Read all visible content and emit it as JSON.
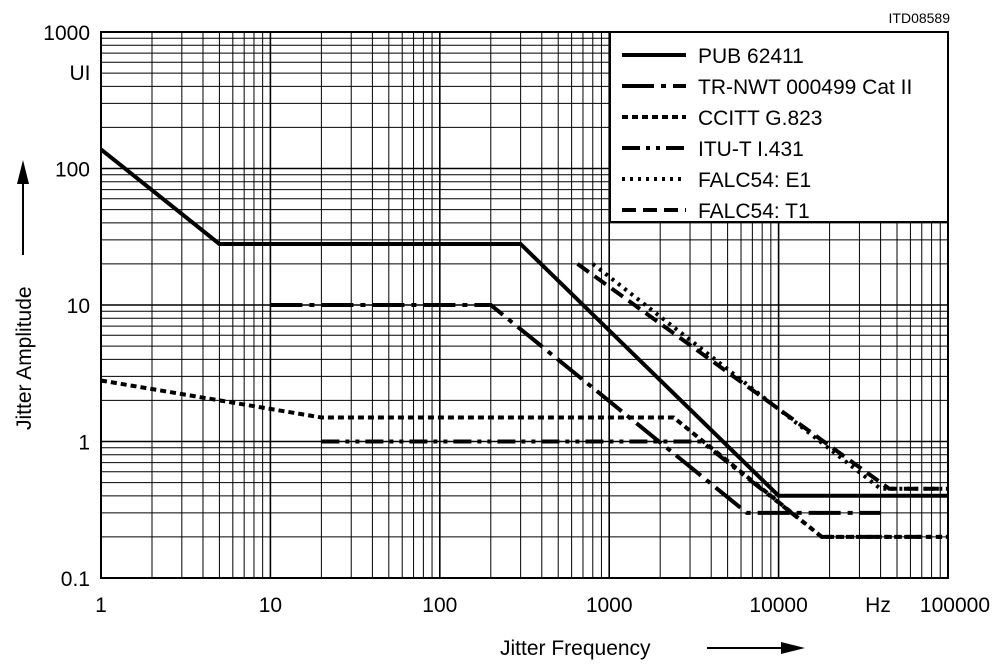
{
  "chart_data": {
    "type": "line",
    "reference_id": "ITD08589",
    "xscale": "log",
    "yscale": "log",
    "xlim": [
      1,
      100000
    ],
    "ylim": [
      0.1,
      1000
    ],
    "grid": true,
    "xlabel": "Jitter Frequency",
    "ylabel": "Jitter Amplitude",
    "x_unit_label": "Hz",
    "y_unit_label": "UI",
    "x_tick_labels": [
      {
        "value": 1,
        "label": "1"
      },
      {
        "value": 10,
        "label": "10"
      },
      {
        "value": 100,
        "label": "100"
      },
      {
        "value": 1000,
        "label": "1000"
      },
      {
        "value": 10000,
        "label": "10000"
      },
      {
        "value": 100000,
        "label": "100000"
      }
    ],
    "y_tick_labels": [
      {
        "value": 0.1,
        "label": "0.1"
      },
      {
        "value": 1,
        "label": "1"
      },
      {
        "value": 10,
        "label": "10"
      },
      {
        "value": 100,
        "label": "100"
      },
      {
        "value": 1000,
        "label": "1000"
      }
    ],
    "legend_position": "top-right",
    "series": [
      {
        "name": "PUB 62411",
        "style": "solid",
        "points": [
          [
            1,
            138
          ],
          [
            5,
            28
          ],
          [
            300,
            28
          ],
          [
            10000,
            0.4
          ],
          [
            100000,
            0.4
          ]
        ]
      },
      {
        "name": "TR-NWT 000499 Cat II",
        "style": "dashdot-long",
        "points": [
          [
            10,
            10
          ],
          [
            200,
            10
          ],
          [
            6500,
            0.3
          ],
          [
            40000,
            0.3
          ]
        ]
      },
      {
        "name": "CCITT G.823",
        "style": "dashed-short",
        "points": [
          [
            1,
            2.8
          ],
          [
            20,
            1.5
          ],
          [
            2400,
            1.5
          ],
          [
            18000,
            0.2
          ],
          [
            100000,
            0.2
          ]
        ]
      },
      {
        "name": "ITU-T I.431",
        "style": "dashdotdot",
        "points": [
          [
            20,
            1
          ],
          [
            3500,
            1
          ],
          [
            18000,
            0.2
          ],
          [
            100000,
            0.2
          ]
        ]
      },
      {
        "name": "FALC54: E1",
        "style": "dotted",
        "points": [
          [
            800,
            20
          ],
          [
            40000,
            0.45
          ],
          [
            100000,
            0.45
          ]
        ]
      },
      {
        "name": "FALC54: T1",
        "style": "dashed",
        "points": [
          [
            650,
            20
          ],
          [
            45000,
            0.45
          ],
          [
            100000,
            0.45
          ]
        ]
      }
    ]
  }
}
